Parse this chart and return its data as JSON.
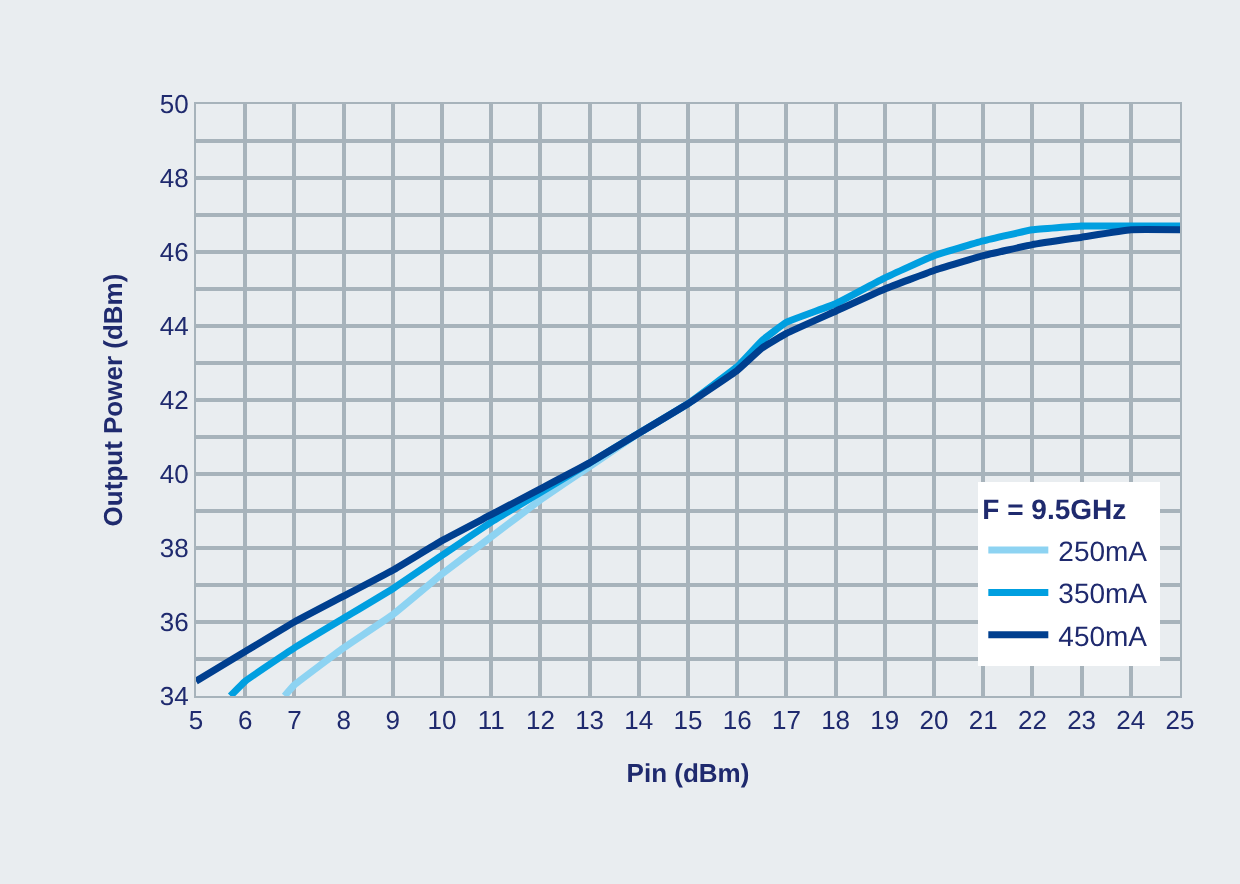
{
  "chart_data": {
    "type": "line",
    "xlabel": "Pin (dBm)",
    "ylabel": "Output Power (dBm)",
    "legend_title": "F = 9.5GHz",
    "series": [
      {
        "name": "250mA",
        "color": "#8dd3f2",
        "x": [
          6.8,
          7,
          8,
          9,
          10,
          11,
          12,
          13,
          14,
          15,
          16
        ],
        "values": [
          34.0,
          34.3,
          35.3,
          36.2,
          37.3,
          38.3,
          39.3,
          40.2,
          41.1,
          41.9,
          42.9
        ]
      },
      {
        "name": "350mA",
        "color": "#009fe0",
        "x": [
          5.7,
          6,
          7,
          8,
          9,
          10,
          11,
          12,
          13,
          14,
          15,
          16,
          16.5,
          17,
          18,
          19,
          20,
          21,
          22,
          23,
          24,
          25
        ],
        "values": [
          34.0,
          34.4,
          35.3,
          36.1,
          36.9,
          37.8,
          38.7,
          39.5,
          40.3,
          41.1,
          41.9,
          42.9,
          43.6,
          44.1,
          44.6,
          45.3,
          45.9,
          46.3,
          46.6,
          46.7,
          46.7,
          46.7
        ]
      },
      {
        "name": "450mA",
        "color": "#003f8f",
        "x": [
          5,
          6,
          7,
          8,
          9,
          10,
          11,
          12,
          13,
          14,
          15,
          16,
          16.5,
          17,
          18,
          19,
          20,
          21,
          22,
          23,
          24,
          25
        ],
        "values": [
          34.4,
          35.2,
          36.0,
          36.7,
          37.4,
          38.2,
          38.9,
          39.6,
          40.3,
          41.1,
          41.9,
          42.8,
          43.4,
          43.8,
          44.4,
          45.0,
          45.5,
          45.9,
          46.2,
          46.4,
          46.6,
          46.6
        ]
      }
    ],
    "xlim": [
      5,
      25
    ],
    "xticks": [
      5,
      6,
      7,
      8,
      9,
      10,
      11,
      12,
      13,
      14,
      15,
      16,
      17,
      18,
      19,
      20,
      21,
      22,
      23,
      24,
      25
    ],
    "ylim": [
      34,
      50
    ],
    "yticks": [
      34,
      {
        "value": 35,
        "label": null
      },
      36,
      {
        "value": 37,
        "label": null
      },
      38,
      {
        "value": 39,
        "label": null
      },
      40,
      {
        "value": 41,
        "label": null
      },
      42,
      {
        "value": 43,
        "label": null
      },
      44,
      {
        "value": 45,
        "label": null
      },
      46,
      {
        "value": 47,
        "label": null
      },
      48,
      {
        "value": 49,
        "label": null
      },
      50
    ],
    "grid": true,
    "legend": "bottom right",
    "marker": "none",
    "line_style": "solid"
  }
}
